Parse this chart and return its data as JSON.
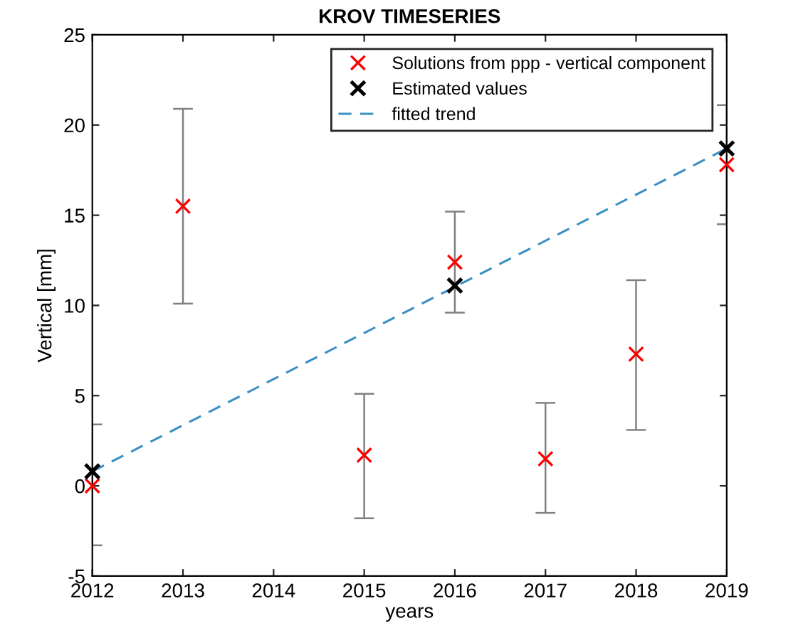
{
  "chart_data": {
    "type": "scatter",
    "title": "KROV TIMESERIES",
    "xlabel": "years",
    "ylabel": "Vertical [mm]",
    "series": [
      {
        "name": "Solutions from ppp - vertical component",
        "color": "#ff0000",
        "marker": "cross",
        "x": [
          2012,
          2013,
          2015,
          2016,
          2017,
          2018,
          2019
        ],
        "values": [
          0,
          15.5,
          1.7,
          12.4,
          1.5,
          7.3,
          17.8
        ],
        "errors": [
          [
            -3.3,
            3.4
          ],
          [
            10.1,
            20.9
          ],
          [
            -1.8,
            5.1
          ],
          [
            9.6,
            15.2
          ],
          [
            -1.5,
            4.6
          ],
          [
            3.1,
            11.4
          ],
          [
            14.5,
            21.1
          ]
        ]
      },
      {
        "name": "Estimated values",
        "color": "#000000",
        "marker": "cross",
        "x": [
          2012,
          2016,
          2019
        ],
        "values": [
          0.8,
          11.1,
          18.7
        ]
      },
      {
        "name": "fitted trend",
        "type": "line",
        "color": "#3a8fc4",
        "line_style": "dashed",
        "marker": "none",
        "x": [
          2012,
          2019
        ],
        "values": [
          0.8,
          18.7
        ]
      }
    ],
    "xlim": [
      2012,
      2019
    ],
    "xticks": [
      2012,
      2013,
      2014,
      2015,
      2016,
      2017,
      2018,
      2019
    ],
    "ylim": [
      -5,
      25
    ],
    "yticks": [
      -5,
      0,
      5,
      10,
      15,
      20,
      25
    ],
    "grid": false,
    "legend": "top right"
  }
}
